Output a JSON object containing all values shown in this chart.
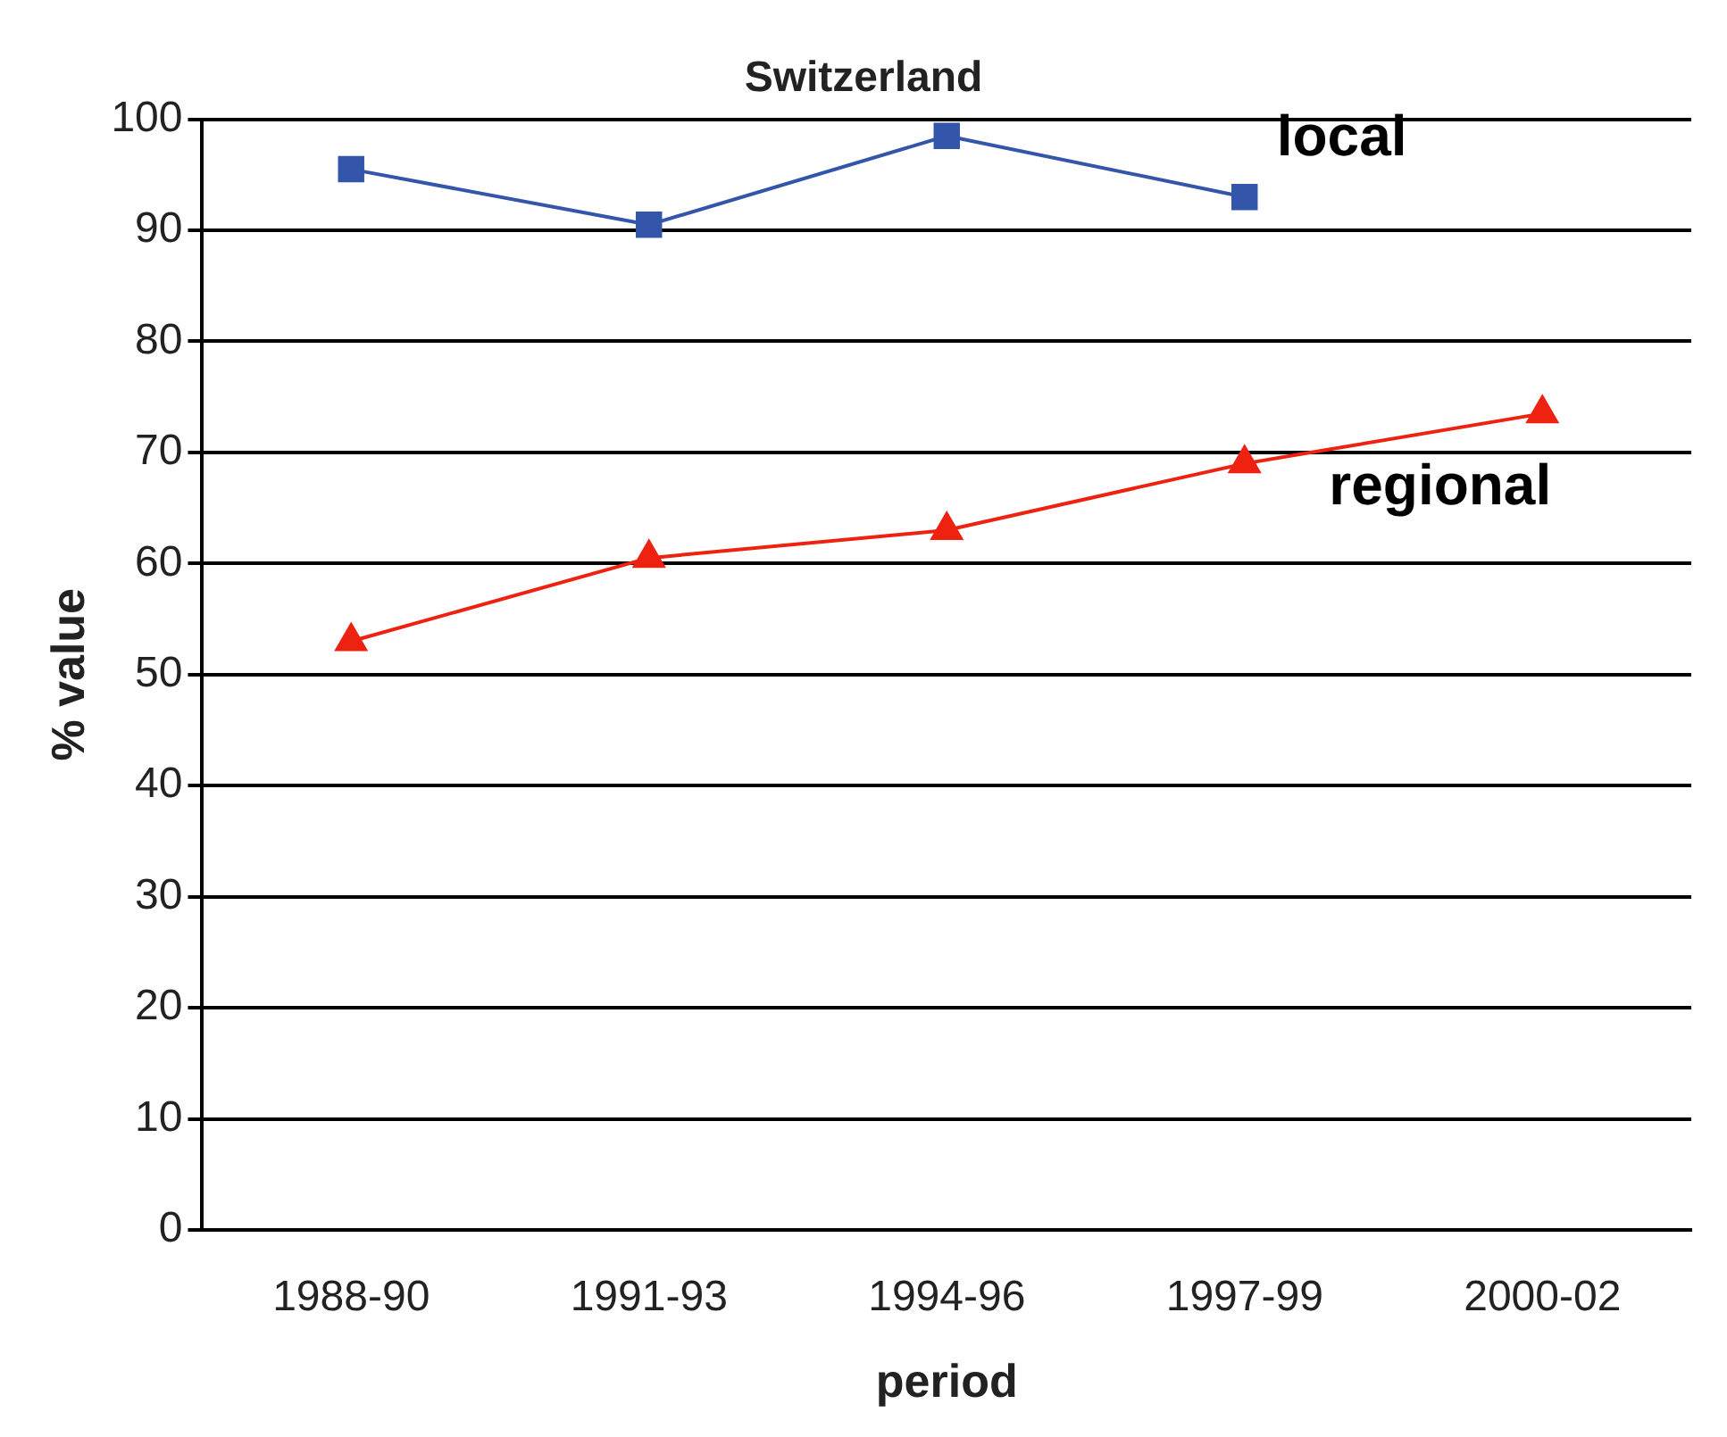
{
  "chart_data": {
    "type": "line",
    "title": "Switzerland",
    "xlabel": "period",
    "ylabel": "% value",
    "categories": [
      "1988-90",
      "1991-93",
      "1994-96",
      "1997-99",
      "2000-02"
    ],
    "series": [
      {
        "name": "local",
        "color": "#3355aa",
        "marker": "square",
        "values": [
          95.5,
          90.5,
          98.5,
          93,
          null
        ]
      },
      {
        "name": "regional",
        "color": "#ee2211",
        "marker": "triangle",
        "values": [
          53,
          60.5,
          63,
          69,
          73.5
        ]
      }
    ],
    "ylim": [
      0,
      100
    ],
    "yticks": [
      0,
      10,
      20,
      30,
      40,
      50,
      60,
      70,
      80,
      90,
      100
    ],
    "grid": "y",
    "legend": false
  }
}
